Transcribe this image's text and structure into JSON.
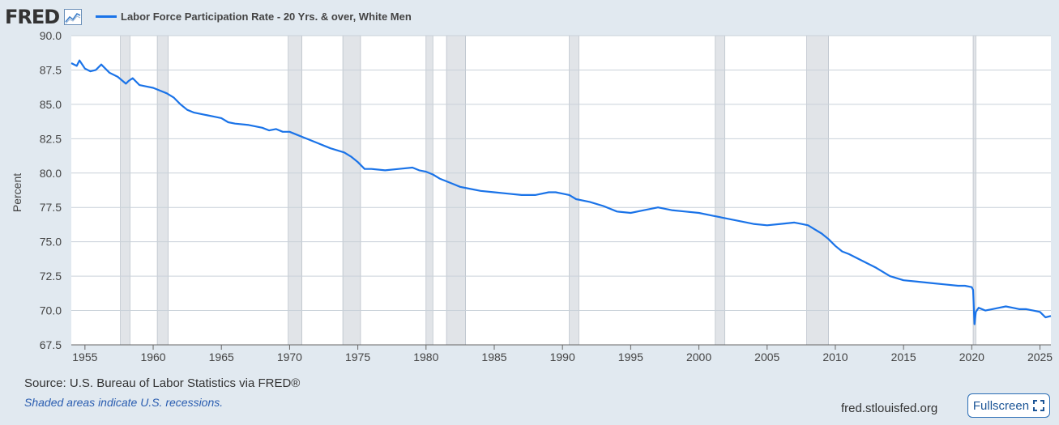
{
  "logo": {
    "text": "FRED",
    "icon": "graph-icon"
  },
  "source": "Source: U.S. Bureau of Labor Statistics via FRED®",
  "note": "Shaded areas indicate U.S. recessions.",
  "site": "fred.stlouisfed.org",
  "fullscreen_label": "Fullscreen",
  "fullscreen_icon": "expand-icon",
  "colors": {
    "line": "#1a73e8",
    "recession": "#e1e4e8",
    "background": "#e1e9f0",
    "plot": "#ffffff"
  },
  "chart_data": {
    "type": "line",
    "ylabel": "Percent",
    "ylim": [
      67.5,
      90.0
    ],
    "xlim": [
      1954.0,
      2025.8
    ],
    "y_ticks": [
      "67.5",
      "70.0",
      "72.5",
      "75.0",
      "77.5",
      "80.0",
      "82.5",
      "85.0",
      "87.5",
      "90.0"
    ],
    "x_ticks": [
      "1955",
      "1960",
      "1965",
      "1970",
      "1975",
      "1980",
      "1985",
      "1990",
      "1995",
      "2000",
      "2005",
      "2010",
      "2015",
      "2020",
      "2025"
    ],
    "grid": true,
    "legend": "top-left",
    "recessions": [
      [
        1957.6,
        1958.3
      ],
      [
        1960.3,
        1961.1
      ],
      [
        1969.9,
        1970.9
      ],
      [
        1973.9,
        1975.2
      ],
      [
        1980.0,
        1980.5
      ],
      [
        1981.5,
        1982.9
      ],
      [
        1990.5,
        1991.2
      ],
      [
        2001.2,
        2001.9
      ],
      [
        2007.9,
        2009.5
      ],
      [
        2020.1,
        2020.3
      ]
    ],
    "series": [
      {
        "name": "Labor Force Participation Rate - 20 Yrs. & over, White Men",
        "x": [
          1954.0,
          1954.4,
          1954.6,
          1955.0,
          1955.4,
          1955.8,
          1956.2,
          1956.8,
          1957.4,
          1958.0,
          1958.2,
          1958.5,
          1959.0,
          1959.5,
          1960.0,
          1960.5,
          1961.0,
          1961.5,
          1962.0,
          1962.5,
          1963.0,
          1963.5,
          1964.0,
          1964.5,
          1965.0,
          1965.5,
          1966.0,
          1967.0,
          1968.0,
          1968.5,
          1969.0,
          1969.5,
          1970.0,
          1970.5,
          1971.0,
          1972.0,
          1972.5,
          1973.0,
          1974.0,
          1974.5,
          1975.0,
          1975.5,
          1976.0,
          1977.0,
          1978.0,
          1979.0,
          1979.5,
          1980.0,
          1980.5,
          1981.0,
          1981.5,
          1982.0,
          1982.5,
          1983.0,
          1984.0,
          1985.0,
          1986.0,
          1987.0,
          1988.0,
          1989.0,
          1989.5,
          1990.0,
          1990.5,
          1991.0,
          1992.0,
          1993.0,
          1994.0,
          1995.0,
          1996.0,
          1997.0,
          1998.0,
          1999.0,
          2000.0,
          2001.0,
          2002.0,
          2003.0,
          2004.0,
          2005.0,
          2006.0,
          2007.0,
          2007.5,
          2008.0,
          2008.5,
          2009.0,
          2009.5,
          2010.0,
          2010.5,
          2011.0,
          2012.0,
          2013.0,
          2014.0,
          2015.0,
          2016.0,
          2017.0,
          2018.0,
          2019.0,
          2019.5,
          2020.0,
          2020.1,
          2020.2,
          2020.3,
          2020.5,
          2021.0,
          2021.5,
          2022.0,
          2022.5,
          2023.0,
          2023.5,
          2024.0,
          2024.5,
          2025.0,
          2025.4,
          2025.8
        ],
        "y": [
          88.0,
          87.8,
          88.2,
          87.6,
          87.4,
          87.5,
          87.9,
          87.3,
          87.0,
          86.5,
          86.7,
          86.9,
          86.4,
          86.3,
          86.2,
          86.0,
          85.8,
          85.5,
          85.0,
          84.6,
          84.4,
          84.3,
          84.2,
          84.1,
          84.0,
          83.7,
          83.6,
          83.5,
          83.3,
          83.1,
          83.2,
          83.0,
          83.0,
          82.8,
          82.6,
          82.2,
          82.0,
          81.8,
          81.5,
          81.2,
          80.8,
          80.3,
          80.3,
          80.2,
          80.3,
          80.4,
          80.2,
          80.1,
          79.9,
          79.6,
          79.4,
          79.2,
          79.0,
          78.9,
          78.7,
          78.6,
          78.5,
          78.4,
          78.4,
          78.6,
          78.6,
          78.5,
          78.4,
          78.1,
          77.9,
          77.6,
          77.2,
          77.1,
          77.3,
          77.5,
          77.3,
          77.2,
          77.1,
          76.9,
          76.7,
          76.5,
          76.3,
          76.2,
          76.3,
          76.4,
          76.3,
          76.2,
          75.9,
          75.6,
          75.2,
          74.7,
          74.3,
          74.1,
          73.6,
          73.1,
          72.5,
          72.2,
          72.1,
          72.0,
          71.9,
          71.8,
          71.8,
          71.7,
          71.5,
          69.0,
          69.9,
          70.2,
          70.0,
          70.1,
          70.2,
          70.3,
          70.2,
          70.1,
          70.1,
          70.0,
          69.9,
          69.5,
          69.6
        ]
      }
    ]
  }
}
